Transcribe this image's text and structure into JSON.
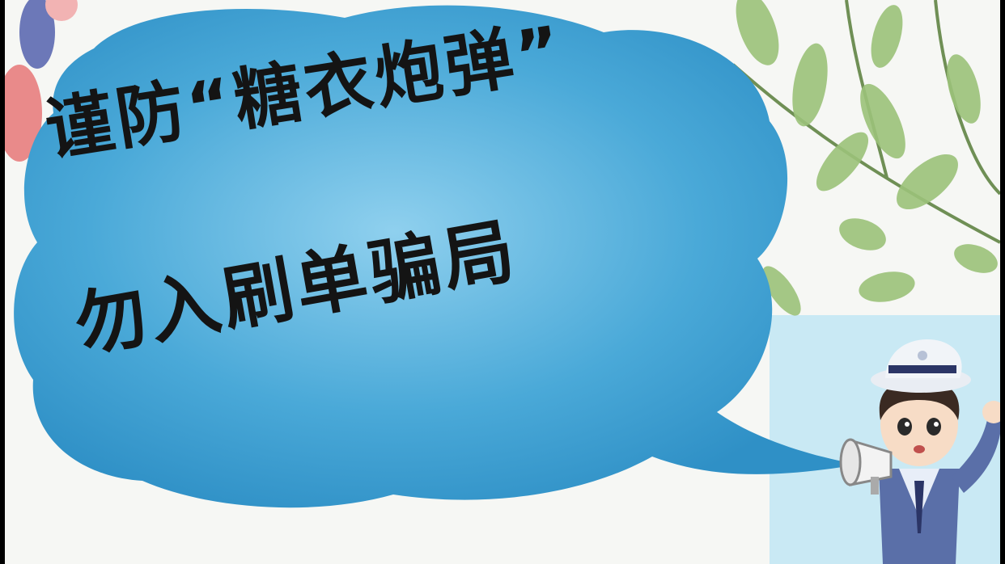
{
  "poster": {
    "headline_line1": "谨防“糖衣炮弹”",
    "headline_line2": "勿入刷单骗局"
  },
  "colors": {
    "bubble": "#4aa9d8",
    "bubble_dark": "#2d8fc4",
    "leaf": "#9cc27a",
    "ink": "#141414"
  },
  "icons": {
    "character": "police-officer-icon",
    "megaphone": "megaphone-icon"
  }
}
